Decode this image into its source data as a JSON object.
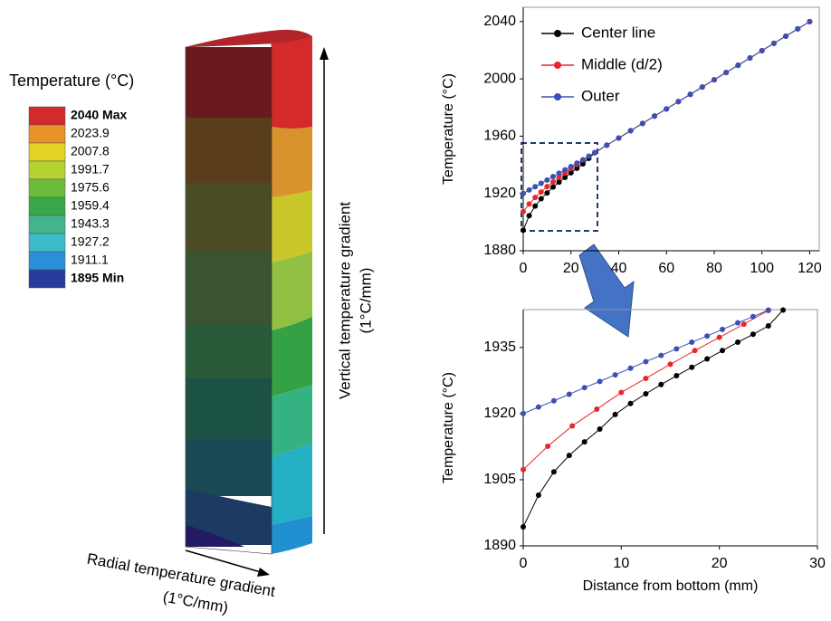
{
  "contour": {
    "title": "Temperature  (°C)",
    "levels": [
      {
        "value": 2040,
        "label": "2040 Max"
      },
      2023.9,
      2007.8,
      1991.7,
      1975.6,
      1959.4,
      1943.3,
      1927.2,
      1911.1,
      {
        "value": 1895,
        "label": "1895 Min"
      }
    ],
    "colors": [
      "#d42a2a",
      "#e8922a",
      "#e2d226",
      "#b4d232",
      "#6cbc3c",
      "#3aa84a",
      "#44b48c",
      "#3cbcc8",
      "#2a8ed8",
      "#283c9c"
    ]
  },
  "annotations": {
    "vertical": "Vertical temperature  gradient",
    "vertical_unit": "(1°C/mm)",
    "radial": "Radial temperature  gradient",
    "radial_unit": "(1°C/mm)"
  },
  "chart_data": [
    {
      "type": "line",
      "y_label": "Temperature  (°C)",
      "legend": "upper left",
      "x": [
        0,
        2.5,
        5,
        7.5,
        10,
        12.5,
        15,
        17.5,
        20,
        22.5,
        25,
        27.5,
        30,
        35,
        40,
        45,
        50,
        55,
        60,
        65,
        70,
        75,
        80,
        85,
        90,
        95,
        100,
        105,
        110,
        115,
        120
      ],
      "series": [
        {
          "name": "Center line",
          "color": "#000000",
          "values": [
            1894.3,
            1904.5,
            1911.2,
            1916.3,
            1920.4,
            1924.5,
            1927.9,
            1931.2,
            1934.4,
            1937.6,
            1940.7,
            1944.5,
            1948.4,
            1953.7,
            1958.7,
            1963.8,
            1968.9,
            1974.0,
            1979.0,
            1984.1,
            1989.2,
            1994.3,
            1999.4,
            2004.4,
            2009.5,
            2014.6,
            2019.7,
            2024.8,
            2029.8,
            2034.9,
            2040
          ]
        },
        {
          "name": "Middle  (d/2)",
          "color": "#e8262a",
          "values": [
            1907.3,
            1912.6,
            1917.2,
            1921.0,
            1924.8,
            1928.0,
            1931.2,
            1934.3,
            1937.3,
            1940.3,
            1943.4,
            1946.0,
            1948.6,
            1953.7,
            1958.7,
            1963.8,
            1968.9,
            1974.0,
            1979.0,
            1984.1,
            1989.2,
            1994.3,
            1999.4,
            2004.4,
            2009.5,
            2014.6,
            2019.7,
            2024.8,
            2029.8,
            2034.9,
            2040
          ]
        },
        {
          "name": "Outer",
          "color": "#3c50b4",
          "values": [
            1920,
            1922.4,
            1924.7,
            1927.1,
            1929.4,
            1931.8,
            1934.1,
            1936.5,
            1938.8,
            1941.2,
            1943.5,
            1946.0,
            1948.6,
            1953.7,
            1958.7,
            1963.8,
            1968.9,
            1974.0,
            1979.0,
            1984.1,
            1989.2,
            1994.3,
            1999.4,
            2004.4,
            2009.5,
            2014.6,
            2019.7,
            2024.8,
            2029.8,
            2034.9,
            2040
          ]
        }
      ],
      "xlim": [
        0,
        124
      ],
      "ylim": [
        1880,
        2050
      ],
      "xticks": [
        0,
        20,
        40,
        60,
        80,
        100,
        120
      ],
      "yticks": [
        1880,
        1920,
        1960,
        2000,
        2040
      ]
    },
    {
      "type": "line",
      "y_label": "Temperature  (°C)",
      "x_label": "Distance from bottom (mm)",
      "series": [
        {
          "color": "#000000",
          "x": [
            0,
            1.56,
            3.13,
            4.69,
            6.25,
            7.81,
            9.38,
            10.94,
            12.5,
            14.06,
            15.63,
            17.19,
            18.75,
            20.31,
            21.88,
            23.44,
            25,
            26.5
          ],
          "values": [
            1894.3,
            1901.5,
            1906.8,
            1910.5,
            1913.6,
            1916.5,
            1919.8,
            1922.3,
            1924.5,
            1926.6,
            1928.6,
            1930.5,
            1932.4,
            1934.3,
            1936.2,
            1938.0,
            1939.9,
            1943.5
          ]
        },
        {
          "color": "#e8262a",
          "x": [
            0,
            2.5,
            5,
            7.5,
            10,
            12.5,
            15,
            17.5,
            20,
            22.5,
            25
          ],
          "values": [
            1907.3,
            1912.6,
            1917.2,
            1921.0,
            1924.8,
            1928.0,
            1931.2,
            1934.3,
            1937.3,
            1940.3,
            1943.4
          ]
        },
        {
          "color": "#3c50b4",
          "x": [
            0,
            1.56,
            3.13,
            4.69,
            6.25,
            7.81,
            9.38,
            10.94,
            12.5,
            14.06,
            15.63,
            17.19,
            18.75,
            20.31,
            21.88,
            23.44,
            25
          ],
          "values": [
            1920.0,
            1921.5,
            1922.9,
            1924.4,
            1925.9,
            1927.3,
            1928.8,
            1930.3,
            1931.8,
            1933.2,
            1934.7,
            1936.2,
            1937.6,
            1939.1,
            1940.6,
            1942.0,
            1943.5
          ]
        }
      ],
      "xlim": [
        0,
        30
      ],
      "ylim": [
        1890,
        1943.6
      ],
      "xticks": [
        0,
        10,
        20,
        30
      ],
      "yticks": [
        1890,
        1905,
        1920,
        1935
      ]
    }
  ]
}
